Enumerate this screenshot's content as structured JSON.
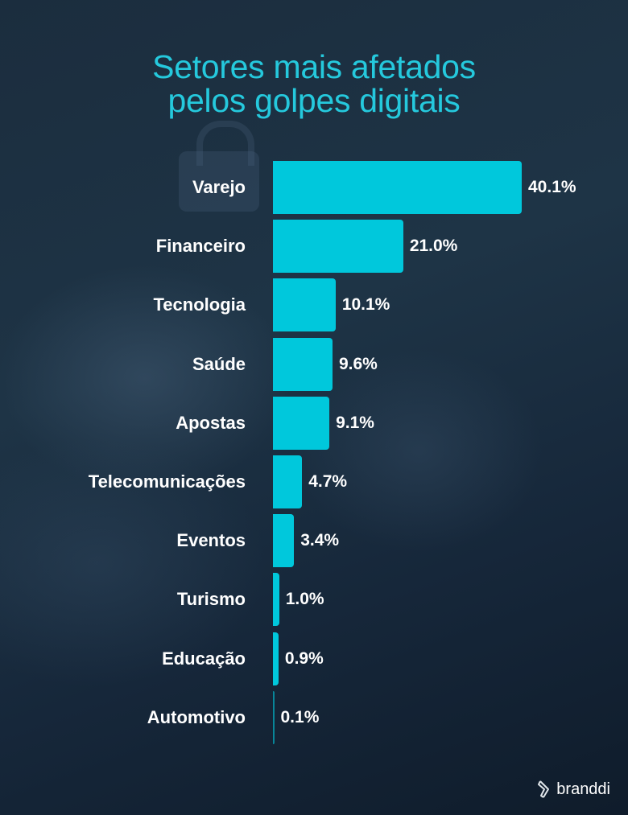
{
  "title": {
    "line1": "Setores mais afetados",
    "line2": "pelos golpes digitais"
  },
  "brand": {
    "name": "branddi",
    "icon": "branddi-logo-icon"
  },
  "colors": {
    "accent": "#00c8dc",
    "title": "#25c9dd",
    "background": "#1a2b3b",
    "text": "#ffffff"
  },
  "rows": [
    {
      "label": "Varejo",
      "value": "40.1%"
    },
    {
      "label": "Financeiro",
      "value": "21.0%"
    },
    {
      "label": "Tecnologia",
      "value": "10.1%"
    },
    {
      "label": "Saúde",
      "value": "9.6%"
    },
    {
      "label": "Apostas",
      "value": "9.1%"
    },
    {
      "label": "Telecomunicações",
      "value": "4.7%"
    },
    {
      "label": "Eventos",
      "value": "3.4%"
    },
    {
      "label": "Turismo",
      "value": "1.0%"
    },
    {
      "label": "Educação",
      "value": "0.9%"
    },
    {
      "label": "Automotivo",
      "value": "0.1%"
    }
  ],
  "chart_data": {
    "type": "bar",
    "orientation": "horizontal",
    "title": "Setores mais afetados pelos golpes digitais",
    "categories": [
      "Varejo",
      "Financeiro",
      "Tecnologia",
      "Saúde",
      "Apostas",
      "Telecomunicações",
      "Eventos",
      "Turismo",
      "Educação",
      "Automotivo"
    ],
    "values": [
      40.1,
      21.0,
      10.1,
      9.6,
      9.1,
      4.7,
      3.4,
      1.0,
      0.9,
      0.1
    ],
    "value_labels": [
      "40.1%",
      "21.0%",
      "10.1%",
      "9.6%",
      "9.1%",
      "4.7%",
      "3.4%",
      "1.0%",
      "0.9%",
      "0.1%"
    ],
    "xlabel": "",
    "ylabel": "",
    "unit": "%",
    "grid": false,
    "legend": null
  }
}
